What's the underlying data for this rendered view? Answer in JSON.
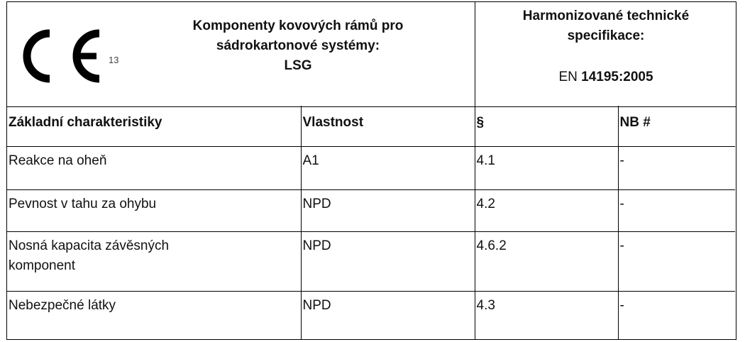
{
  "header": {
    "ce_number": "13",
    "title": [
      "Komponenty kovových rámů pro",
      "sádrokartonové systémy:",
      "LSG"
    ],
    "spec_title": [
      "Harmonizované technické",
      "specifikace:"
    ],
    "spec_prefix": "EN",
    "spec_code": "14195:2005"
  },
  "table": {
    "columns": [
      "Základní charakteristiky",
      "Vlastnost",
      "§",
      "NB #"
    ],
    "rows": [
      [
        "Reakce na oheň",
        "A1",
        "4.1",
        "-"
      ],
      [
        "Pevnost v tahu za ohybu",
        "NPD",
        "4.2",
        "-"
      ],
      [
        "Nosná kapacita závěsných komponent",
        "NPD",
        "4.6.2",
        "-"
      ],
      [
        "Nebezpečné látky",
        "NPD",
        "4.3",
        "-"
      ]
    ]
  }
}
